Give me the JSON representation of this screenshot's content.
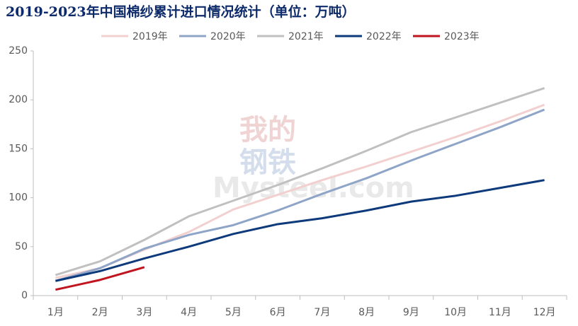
{
  "chart_data": {
    "type": "line",
    "title": "2019-2023年中国棉纱累计进口情况统计（单位：万吨）",
    "watermark": [
      "我的",
      "钢铁",
      "Mysteel.com"
    ],
    "categories": [
      "1月",
      "2月",
      "3月",
      "4月",
      "5月",
      "6月",
      "7月",
      "8月",
      "9月",
      "10月",
      "11月",
      "12月"
    ],
    "series": [
      {
        "name": "2019年",
        "color": "#f2d0d0",
        "values": [
          18,
          28,
          47,
          65,
          88,
          103,
          118,
          132,
          147,
          162,
          178,
          195
        ]
      },
      {
        "name": "2020年",
        "color": "#8fa5c8",
        "values": [
          15,
          28,
          48,
          62,
          72,
          87,
          104,
          120,
          138,
          155,
          172,
          190
        ]
      },
      {
        "name": "2021年",
        "color": "#c0c0c0",
        "values": [
          21,
          35,
          57,
          81,
          97,
          113,
          130,
          148,
          167,
          182,
          197,
          212
        ]
      },
      {
        "name": "2022年",
        "color": "#0d3a7a",
        "values": [
          15,
          25,
          38,
          50,
          63,
          73,
          79,
          87,
          96,
          102,
          110,
          118
        ]
      },
      {
        "name": "2023年",
        "color": "#c0141e",
        "values": [
          6,
          16,
          29,
          null,
          null,
          null,
          null,
          null,
          null,
          null,
          null,
          null
        ]
      }
    ],
    "ylim": [
      0,
      250
    ],
    "yticks": [
      0,
      50,
      100,
      150,
      200,
      250
    ],
    "grid": false,
    "legend": "top"
  }
}
